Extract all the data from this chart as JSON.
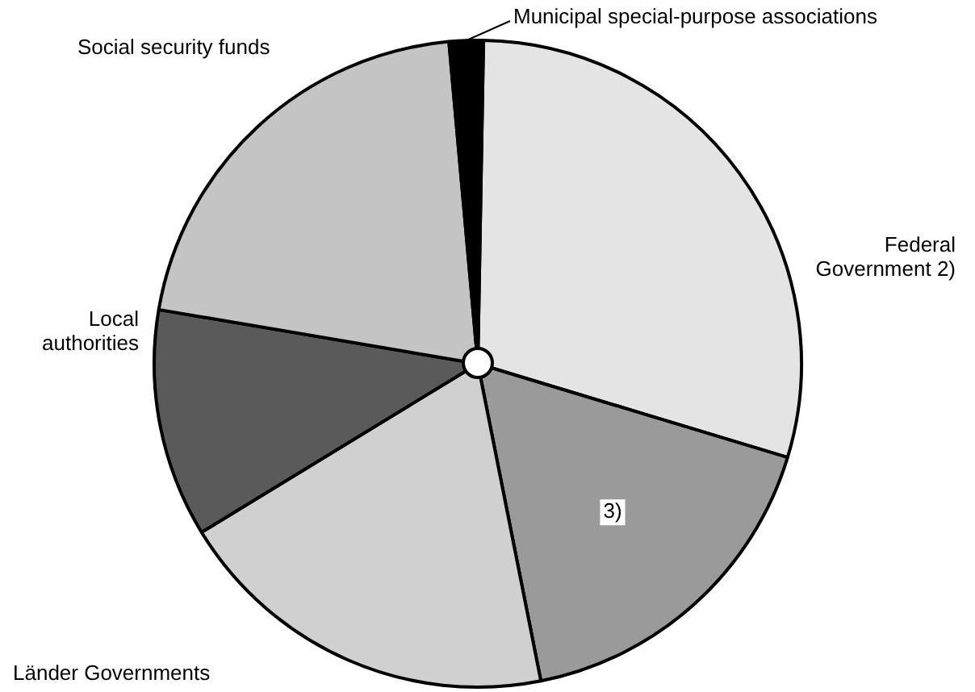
{
  "chart_data": {
    "type": "pie",
    "categories": [
      "Federal Government 2)",
      "3)",
      "Länder Governments",
      "Local authorities",
      "Social security funds",
      "Municipal special-purpose associations"
    ],
    "values": [
      29.4,
      17.2,
      19.4,
      11.4,
      20.9,
      1.7
    ],
    "colors": [
      "#e4e4e4",
      "#9a9a9a",
      "#d0d0d0",
      "#5a5a5a",
      "#c4c4c4",
      "#000000"
    ]
  }
}
